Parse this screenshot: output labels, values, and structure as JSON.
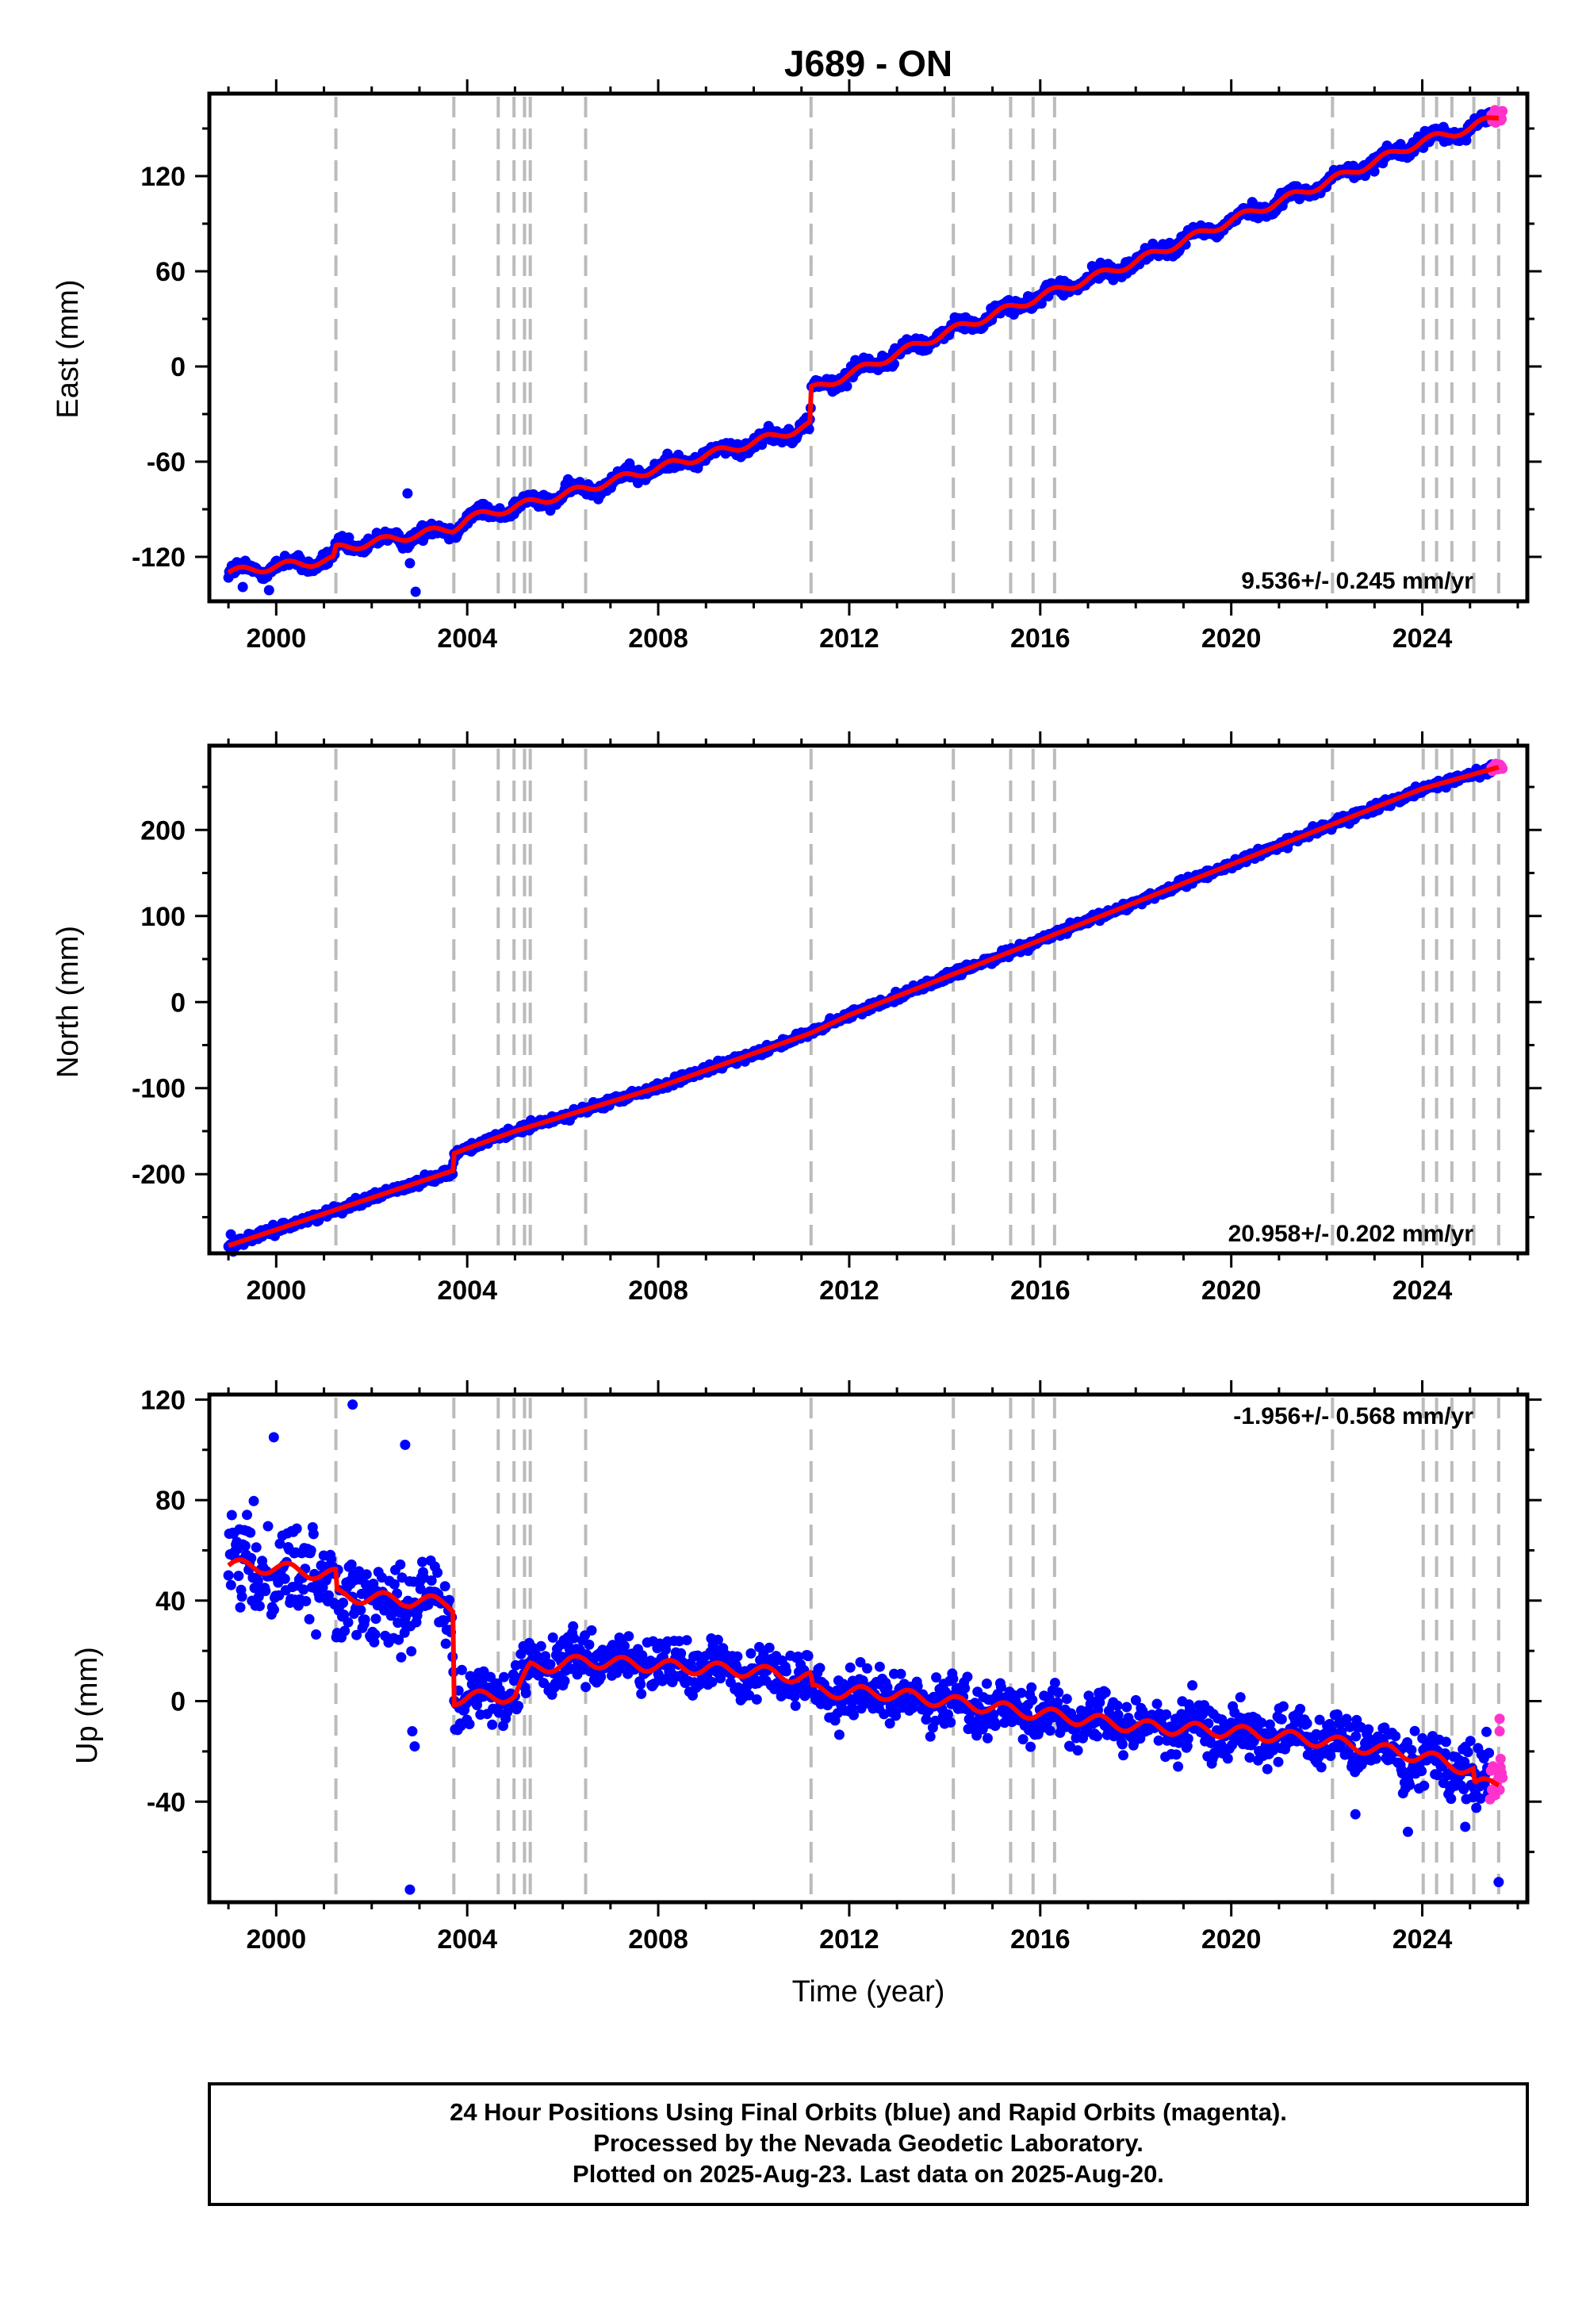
{
  "chart_data": {
    "type": "scatter",
    "title": "J689 - ON",
    "xlabel": "Time (year)",
    "x_ticks": [
      "2000",
      "2004",
      "2008",
      "2012",
      "2016",
      "2020",
      "2024"
    ],
    "xlim": [
      1998.6,
      2026.2
    ],
    "colors": {
      "final": "#0000ff",
      "rapid": "#ff33cc",
      "model": "#ff0000",
      "event_lines": "#bbbbbb"
    },
    "event_lines": [
      2001.25,
      2003.72,
      2004.65,
      2004.98,
      2005.2,
      2005.32,
      2006.48,
      2011.2,
      2014.18,
      2015.38,
      2015.85,
      2016.3,
      2022.12,
      2024.02,
      2024.3,
      2024.62,
      2025.08,
      2025.6
    ],
    "panels": [
      {
        "id": "east",
        "ylabel": "East (mm)",
        "ylim": [
          -148,
          172
        ],
        "y_ticks": [
          "-120",
          "-60",
          "0",
          "60",
          "120"
        ],
        "y_tick_values": [
          -120,
          -60,
          0,
          60,
          120
        ],
        "rate": "9.536+/- 0.245 mm/yr",
        "model": [
          [
            1999.0,
            -130
          ],
          [
            2000.0,
            -126
          ],
          [
            2001.2,
            -122
          ],
          [
            2001.25,
            -115
          ],
          [
            2003.7,
            -102
          ],
          [
            2004.0,
            -96
          ],
          [
            2006.0,
            -81
          ],
          [
            2008.0,
            -64
          ],
          [
            2010.0,
            -48
          ],
          [
            2011.19,
            -37
          ],
          [
            2011.2,
            -15
          ],
          [
            2012.0,
            -5
          ],
          [
            2014.0,
            21
          ],
          [
            2016.0,
            44
          ],
          [
            2018.0,
            66
          ],
          [
            2020.0,
            92
          ],
          [
            2022.0,
            116
          ],
          [
            2024.0,
            142
          ],
          [
            2025.0,
            150
          ],
          [
            2025.6,
            158
          ]
        ],
        "noise_final": 3.2,
        "outliers": [
          [
            2002.75,
            -80
          ],
          [
            2002.92,
            -142
          ],
          [
            1999.3,
            -139
          ],
          [
            1999.85,
            -141
          ],
          [
            2002.8,
            -124
          ]
        ],
        "rapid_range": [
          2025.45,
          2025.68
        ],
        "noise_rapid": 3.0
      },
      {
        "id": "north",
        "ylabel": "North (mm)",
        "ylim": [
          -292,
          298
        ],
        "y_ticks": [
          "-200",
          "-100",
          "0",
          "100",
          "200"
        ],
        "y_tick_values": [
          -200,
          -100,
          0,
          100,
          200
        ],
        "rate": "20.958+/- 0.202 mm/yr",
        "model": [
          [
            1999.0,
            -283
          ],
          [
            2003.7,
            -196
          ],
          [
            2003.72,
            -176
          ],
          [
            2004.0,
            -170
          ],
          [
            2005.0,
            -150
          ],
          [
            2008.0,
            -99
          ],
          [
            2011.2,
            -36
          ],
          [
            2012.0,
            -15
          ],
          [
            2016.0,
            72
          ],
          [
            2020.0,
            160
          ],
          [
            2024.0,
            248
          ],
          [
            2025.6,
            273
          ]
        ],
        "noise_final": 3.4,
        "outliers": [
          [
            1999.05,
            -270
          ],
          [
            1999.1,
            -290
          ]
        ],
        "rapid_range": [
          2025.45,
          2025.68
        ],
        "noise_rapid": 4.0
      },
      {
        "id": "up",
        "ylabel": "Up (mm)",
        "ylim": [
          -80,
          122
        ],
        "y_ticks": [
          "-40",
          "0",
          "40",
          "80",
          "120"
        ],
        "y_tick_values": [
          -40,
          0,
          40,
          80,
          120
        ],
        "rate": "-1.956+/- 0.568 mm/yr",
        "model": [
          [
            1999.0,
            54
          ],
          [
            2000.0,
            53
          ],
          [
            2001.25,
            50
          ],
          [
            2001.27,
            42
          ],
          [
            2003.6,
            39
          ],
          [
            2003.7,
            38
          ],
          [
            2003.72,
            1
          ],
          [
            2004.6,
            2
          ],
          [
            2005.0,
            2
          ],
          [
            2005.32,
            13
          ],
          [
            2006.48,
            16
          ],
          [
            2008.0,
            14
          ],
          [
            2010.0,
            12
          ],
          [
            2011.2,
            9
          ],
          [
            2011.22,
            4
          ],
          [
            2012.8,
            3
          ],
          [
            2014.0,
            0
          ],
          [
            2016.0,
            -5
          ],
          [
            2018.0,
            -10
          ],
          [
            2020.0,
            -12
          ],
          [
            2022.0,
            -16
          ],
          [
            2024.0,
            -22
          ],
          [
            2024.62,
            -25
          ],
          [
            2025.08,
            -28
          ],
          [
            2025.1,
            -34
          ],
          [
            2025.6,
            -32
          ]
        ],
        "noise_final": 8.0,
        "outliers": [
          [
            2002.8,
            -75
          ],
          [
            2001.6,
            118
          ],
          [
            2002.7,
            102
          ],
          [
            1999.95,
            105
          ],
          [
            2002.9,
            -18
          ],
          [
            2002.85,
            -12
          ],
          [
            2025.6,
            -72
          ],
          [
            2023.7,
            -52
          ],
          [
            2024.9,
            -50
          ],
          [
            2022.6,
            -45
          ]
        ],
        "rapid_range": [
          2025.42,
          2025.68
        ],
        "noise_rapid": 7.0
      }
    ],
    "caption": [
      "24 Hour Positions Using Final Orbits (blue) and Rapid Orbits (magenta).",
      "Processed by the Nevada Geodetic Laboratory.",
      "Plotted on 2025-Aug-23. Last data on 2025-Aug-20."
    ]
  }
}
